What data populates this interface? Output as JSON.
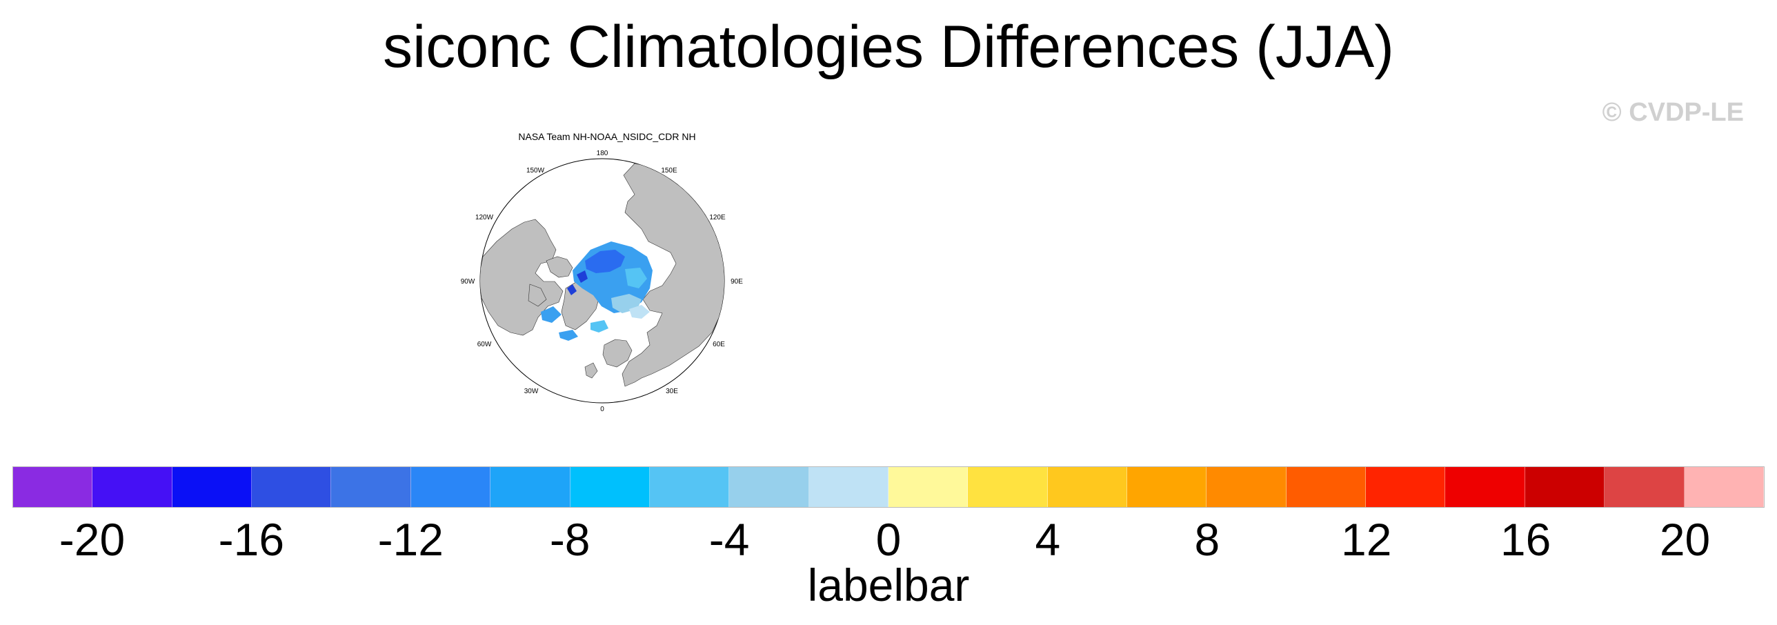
{
  "title": "siconc Climatologies Differences (JJA)",
  "watermark": "© CVDP-LE",
  "panel": {
    "title": "NASA Team NH-NOAA_NSIDC_CDR NH",
    "longitude_labels": [
      "180",
      "150E",
      "120E",
      "90E",
      "60E",
      "30E",
      "0",
      "30W",
      "60W",
      "90W",
      "120W",
      "150W"
    ]
  },
  "colorbar": {
    "label": "labelbar",
    "tick_labels": [
      "-20",
      "-16",
      "-12",
      "-8",
      "-4",
      "0",
      "4",
      "8",
      "12",
      "16",
      "20"
    ],
    "colors": [
      "#8a2be2",
      "#4510f5",
      "#0a10f6",
      "#2e4fe3",
      "#3c73e6",
      "#2a86f7",
      "#1ea4f8",
      "#00c0fd",
      "#55c4f4",
      "#97d0ec",
      "#bfe2f5",
      "#fff99a",
      "#ffe240",
      "#ffc81e",
      "#ffa500",
      "#ff8a00",
      "#ff5c00",
      "#ff2400",
      "#ee0000",
      "#cc0000",
      "#dd4444",
      "#ffb3b3"
    ]
  },
  "colors": {
    "land": "#bfbfbf",
    "ocean": "#ffffff",
    "sea_ice_decrease": "#3aa0f0"
  }
}
